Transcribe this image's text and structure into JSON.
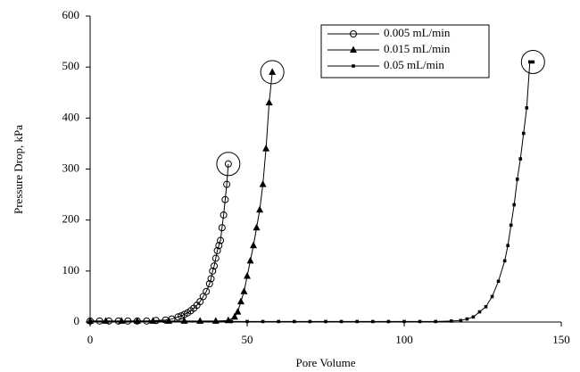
{
  "chart_data": {
    "type": "line",
    "xlabel": "Pore Volume",
    "ylabel": "Pressure Drop, kPa",
    "xlim": [
      0,
      150
    ],
    "xticks": [
      0,
      50,
      100,
      150
    ],
    "ylim": [
      0,
      600
    ],
    "yticks": [
      0,
      100,
      200,
      300,
      400,
      500,
      600
    ],
    "grid": false,
    "legend": "upper right",
    "series": [
      {
        "name": "0.005 mL/min",
        "color": "#000000",
        "marker": "circle",
        "x": [
          0,
          3,
          6,
          9,
          12,
          15,
          18,
          21,
          24,
          26,
          28,
          29,
          30,
          31,
          32,
          33,
          34,
          35,
          36,
          37,
          38,
          38.5,
          39,
          39.5,
          40,
          40.5,
          41,
          41.5,
          42,
          42.5,
          43,
          43.5,
          44
        ],
        "values": [
          2,
          2,
          2,
          2,
          2,
          2,
          2,
          3,
          4,
          6,
          10,
          12,
          15,
          18,
          22,
          27,
          33,
          40,
          50,
          60,
          75,
          85,
          100,
          110,
          125,
          140,
          150,
          160,
          185,
          210,
          240,
          270,
          310
        ]
      },
      {
        "name": "0.015 mL/min",
        "color": "#000000",
        "marker": "triangle",
        "x": [
          0,
          5,
          10,
          15,
          20,
          25,
          30,
          35,
          40,
          44,
          46,
          47,
          48,
          49,
          50,
          51,
          52,
          53,
          54,
          55,
          56,
          57,
          58
        ],
        "values": [
          2,
          2,
          2,
          2,
          2,
          2,
          2,
          2,
          2,
          3,
          10,
          20,
          40,
          60,
          90,
          120,
          150,
          185,
          220,
          270,
          340,
          430,
          490
        ]
      },
      {
        "name": "0.05 mL/min",
        "color": "#000000",
        "marker": "square",
        "x": [
          0,
          5,
          10,
          15,
          20,
          25,
          30,
          35,
          40,
          45,
          50,
          55,
          60,
          65,
          70,
          75,
          80,
          85,
          90,
          95,
          100,
          105,
          110,
          115,
          118,
          120,
          122,
          124,
          126,
          128,
          130,
          132,
          133,
          134,
          135,
          136,
          137,
          138,
          139,
          140,
          141
        ],
        "values": [
          1,
          1,
          1,
          1,
          1,
          1,
          1,
          1,
          1,
          1,
          1,
          1,
          1,
          1,
          1,
          1,
          1,
          1,
          1,
          1,
          1,
          1,
          1,
          2,
          3,
          6,
          10,
          20,
          30,
          50,
          80,
          120,
          150,
          190,
          230,
          280,
          320,
          370,
          420,
          510,
          510
        ]
      }
    ]
  }
}
